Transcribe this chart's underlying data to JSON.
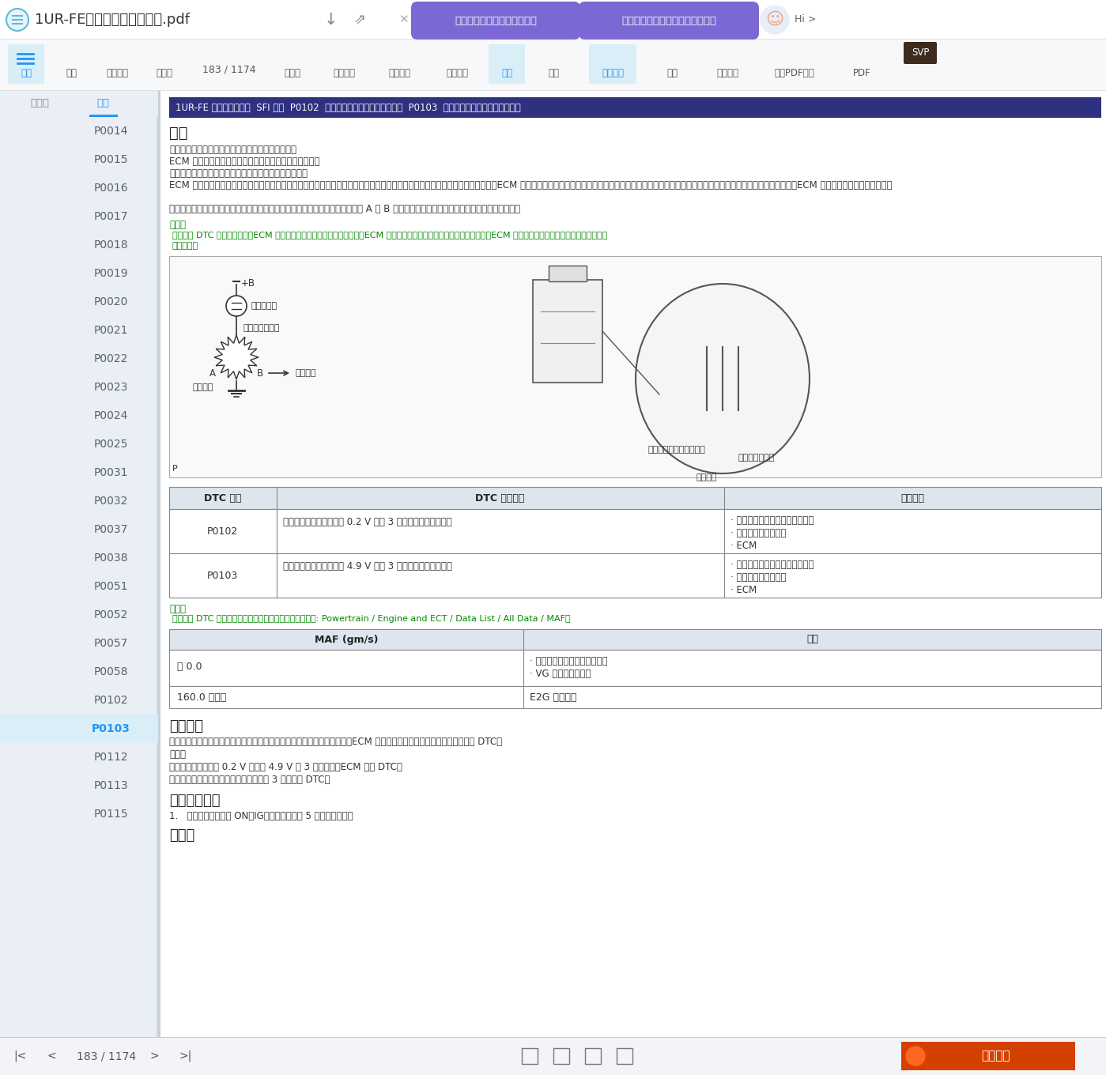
{
  "title_bar_text": "1UR-FE（发动机控制系统）.pdf",
  "ai_btn1": "帮我总结一下这个文档的大纲",
  "ai_btn2": "中国顶尖大学有哪些历史和发展？",
  "toolbar_labels": [
    "目录",
    "打印",
    "线上打印",
    "上一页",
    "下一页",
    "实际大小",
    "适合宽度",
    "适合页面",
    "单页",
    "双页",
    "连续阅读",
    "查找",
    "截图识字",
    "影印PDF识别",
    "PDF"
  ],
  "page_num": "183 / 1174",
  "sidebar_tab1": "缩略图",
  "sidebar_tab2": "目录",
  "sidebar_items": [
    "P0014",
    "P0015",
    "P0016",
    "P0017",
    "P0018",
    "P0019",
    "P0020",
    "P0021",
    "P0022",
    "P0023",
    "P0024",
    "P0025",
    "P0031",
    "P0032",
    "P0037",
    "P0038",
    "P0051",
    "P0052",
    "P0057",
    "P0058",
    "P0102",
    "P0103",
    "P0112",
    "P0113",
    "P0115"
  ],
  "active_item": "P0103",
  "page_header": "1UR-FE 发动机控制系统  SFI 系统  P0102  质量或体积空气流量电路低输入  P0103  质量或体积空气流量电路高输入",
  "sec1": "描述",
  "body1": "质量空气流量计是测量流经节气门空气量的传感器。",
  "body2": "ECM 利用该信息确定燃油喷射时间并提供适当的空燃比。",
  "body3": "质量空气流量计内部有一个暴露于进气气流的白金热丝。",
  "body4": "ECM 向白金热丝施加一个特定的电流，以将其加热到给定的温度。进气气流冷却白金热丝和内部热敏电阔，从而影响它们的电阔。ECM 通过改变施加至白金热丝和内部热敏电阔的电压，来保持电流值恒定。电压高低与通过传感器的空气流量成比例。ECM 利用这种规律来计算进气量。",
  "body5": "该电路的结构使白金热丝和温度传感器形成桥接电路，并且功率晶体管的控制使 A 和 B 两点的电压保持相等，以使得温度保持在预定温度。",
  "hint1_label": "提示：",
  "hint1_line1": "存储这些 DTC 中的任一个时，ECM 进入失效保护模式。失效保护模式下，ECM 根据发动机转速和节气门位置计算点火正时。ECM 在失效保护模式下持续运行，直至检测到",
  "hint1_line2": "通过条件。",
  "circ_plus_b": "+B",
  "circ_transistor": "功率晶体管",
  "circ_hotwire": "热丝（加热器）",
  "circ_output": "输出电压",
  "circ_cold": "冷膜元件",
  "sensor_temp": "温度传感器（热敏电阔）",
  "sensor_hot": "热丝（加热器）",
  "sensor_cold": "冷膜元件",
  "tbl1_h1": "DTC 编号",
  "tbl1_h2": "DTC 检测条件",
  "tbl1_h3": "故障部位",
  "tbl1_r1c1": "P0102",
  "tbl1_r1c2": "质量空气流量计电压低于 0.2 V 持续 3 秒（单程检测逻辑）。",
  "tbl1_r1c3": "· 质量空气流量计电路断路或短路\n· 质量空气流量计总成\n· ECM",
  "tbl1_r2c1": "P0103",
  "tbl1_r2c2": "质量空气流量计电压高于 4.9 V 持续 3 秒（单程检测逻辑）。",
  "tbl1_r2c3": "· 质量空气流量计电路断路或短路\n· 质量空气流量计总成\n· ECM",
  "hint2_label": "提示：",
  "hint2_text": "存储这些 DTC 中的任一个时，进入以下菜单检查空气流量: Powertrain / Engine and ECT / Data List / All Data / MAF。",
  "tbl2_h1": "MAF (gm/s)",
  "tbl2_h2": "故障",
  "tbl2_r1c1": "约 0.0",
  "tbl2_r1c2": "· 质量空气流量计电源电路断路\n· VG 电路断路或短路",
  "tbl2_r2c1": "160.0 或更大",
  "tbl2_r2c2": "E2G 电路断路",
  "sec2": "监视描述",
  "mon1": "如果质量空气流量计在故障或电路断路或短路，则电压偏离正常工作范围，ECM 将此偏差视为质量空气流量计故障并存储 DTC。",
  "mon2": "示例：",
  "mon3": "传感器输出电压低于 0.2 V 或高于 4.9 V 达 3 秒以上时，ECM 存储 DTC。",
  "mon4": "如果故障未成功排除，则下次启动发动机 3 秒后存储 DTC。",
  "sec3": "确认行驶模式",
  "conf1": "1.   将发动机开关置于 ON（IG）位置，并等待 5 秒或更长时间。",
  "sec4": "电路图",
  "bottom_nav": "183 / 1174",
  "logo_text": "汽修帮手"
}
